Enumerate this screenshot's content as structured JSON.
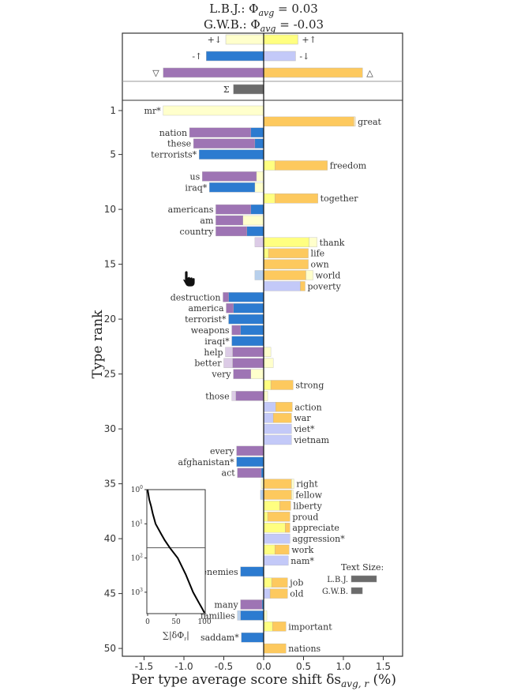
{
  "chart_data": {
    "type": "bar",
    "title_lines": [
      {
        "prefix": "L.B.J.: Φ",
        "sub": "avg",
        "suffix": " = 0.03"
      },
      {
        "prefix": "G.W.B.: Φ",
        "sub": "avg",
        "suffix": " = -0.03"
      }
    ],
    "xlabel": {
      "prefix": "Per type average score shift δs",
      "sub": "avg, r",
      "suffix": " (%)"
    },
    "ylabel": "Type rank",
    "xlim": [
      -1.7,
      1.75
    ],
    "x_ticks": [
      -1.5,
      -1.0,
      -0.5,
      0.0,
      0.5,
      1.0,
      1.5
    ],
    "x_tick_labels": [
      "-1.5",
      "-1.0",
      "-0.5",
      "0.0",
      "0.5",
      "1.0",
      "1.5"
    ],
    "y_ticks": [
      1,
      5,
      10,
      15,
      20,
      25,
      30,
      35,
      40,
      45,
      50
    ],
    "y_tick_labels": [
      "1",
      "5",
      "10",
      "15",
      "20",
      "25",
      "30",
      "35",
      "40",
      "45",
      "50"
    ],
    "colors": {
      "p": "#9e74b4",
      "o": "#fdc95e",
      "b": "#2c7bd0",
      "y": "#ffff80",
      "ly": "#ffffcc",
      "lav": "#c3c9f8",
      "lp": "#dccbe6",
      "lb": "#b8d0ec",
      "lo": "#fde6b0",
      "sum": "#6b6b6b"
    },
    "summary": [
      {
        "label": "+↓",
        "value": -0.475,
        "color": "ly",
        "row": 0
      },
      {
        "label": "+↑",
        "value": 0.43,
        "color": "y",
        "row": 0
      },
      {
        "label": "-↑",
        "value": -0.72,
        "color": "b",
        "row": 1
      },
      {
        "label": "-↓",
        "value": 0.4,
        "color": "lav",
        "row": 1
      },
      {
        "label": "▽",
        "value": -1.26,
        "color": "p",
        "row": 2
      },
      {
        "label": "△",
        "value": 1.24,
        "color": "o",
        "row": 2
      },
      {
        "label": "Σ",
        "value": -0.38,
        "color": "sum",
        "row": 3
      }
    ],
    "words": [
      {
        "rank": 1,
        "word": "mr*",
        "segs": [
          [
            0,
            -1.26,
            "ly"
          ]
        ]
      },
      {
        "rank": 2,
        "word": "great",
        "segs": [
          [
            0,
            1.13,
            "o"
          ],
          [
            1.13,
            1.15,
            "lo"
          ]
        ]
      },
      {
        "rank": 3,
        "word": "nation",
        "segs": [
          [
            0,
            -0.16,
            "b"
          ],
          [
            -0.16,
            -0.93,
            "p"
          ]
        ]
      },
      {
        "rank": 4,
        "word": "these",
        "segs": [
          [
            0,
            -0.11,
            "b"
          ],
          [
            -0.11,
            -0.88,
            "p"
          ]
        ]
      },
      {
        "rank": 5,
        "word": "terrorists*",
        "segs": [
          [
            0,
            -0.81,
            "b"
          ]
        ]
      },
      {
        "rank": 6,
        "word": "freedom",
        "segs": [
          [
            0,
            0.14,
            "y"
          ],
          [
            0.14,
            0.8,
            "o"
          ]
        ]
      },
      {
        "rank": 7,
        "word": "us",
        "segs": [
          [
            0,
            -0.09,
            "ly"
          ],
          [
            -0.09,
            -0.77,
            "p"
          ]
        ]
      },
      {
        "rank": 8,
        "word": "iraq*",
        "segs": [
          [
            0,
            -0.11,
            "ly"
          ],
          [
            -0.11,
            -0.68,
            "b"
          ]
        ]
      },
      {
        "rank": 9,
        "word": "together",
        "segs": [
          [
            0,
            0.14,
            "y"
          ],
          [
            0.14,
            0.68,
            "o"
          ]
        ]
      },
      {
        "rank": 10,
        "word": "americans",
        "segs": [
          [
            0,
            -0.16,
            "b"
          ],
          [
            -0.16,
            -0.6,
            "p"
          ]
        ]
      },
      {
        "rank": 11,
        "word": "am",
        "segs": [
          [
            0,
            -0.26,
            "ly"
          ],
          [
            -0.26,
            -0.6,
            "p"
          ]
        ]
      },
      {
        "rank": 12,
        "word": "country",
        "segs": [
          [
            0,
            -0.21,
            "b"
          ],
          [
            -0.21,
            -0.6,
            "p"
          ]
        ]
      },
      {
        "rank": 13,
        "word": "thank",
        "segs": [
          [
            0,
            -0.11,
            "lp"
          ],
          [
            0,
            0.57,
            "y"
          ],
          [
            0.57,
            0.67,
            "ly"
          ]
        ]
      },
      {
        "rank": 14,
        "word": "life",
        "segs": [
          [
            0,
            0.06,
            "y"
          ],
          [
            0.06,
            0.56,
            "o"
          ]
        ]
      },
      {
        "rank": 15,
        "word": "own",
        "segs": [
          [
            0,
            0.56,
            "o"
          ]
        ]
      },
      {
        "rank": 16,
        "word": "world",
        "segs": [
          [
            0,
            -0.11,
            "lb"
          ],
          [
            0,
            0.53,
            "o"
          ],
          [
            0.53,
            0.62,
            "ly"
          ]
        ]
      },
      {
        "rank": 17,
        "word": "poverty",
        "segs": [
          [
            0,
            0.46,
            "lav"
          ],
          [
            0.46,
            0.52,
            "o"
          ]
        ]
      },
      {
        "rank": 18,
        "word": "destruction",
        "segs": [
          [
            0,
            -0.44,
            "b"
          ],
          [
            -0.44,
            -0.51,
            "p"
          ]
        ]
      },
      {
        "rank": 19,
        "word": "america",
        "segs": [
          [
            0,
            -0.38,
            "b"
          ],
          [
            -0.38,
            -0.47,
            "p"
          ]
        ]
      },
      {
        "rank": 20,
        "word": "terrorist*",
        "segs": [
          [
            0,
            -0.44,
            "b"
          ]
        ]
      },
      {
        "rank": 21,
        "word": "weapons",
        "segs": [
          [
            0,
            -0.29,
            "b"
          ],
          [
            -0.29,
            -0.4,
            "p"
          ]
        ]
      },
      {
        "rank": 22,
        "word": "iraqi*",
        "segs": [
          [
            0,
            -0.4,
            "b"
          ]
        ]
      },
      {
        "rank": 23,
        "word": "help",
        "segs": [
          [
            0,
            -0.39,
            "p"
          ],
          [
            -0.39,
            -0.48,
            "lp"
          ],
          [
            0,
            0.09,
            "ly"
          ]
        ]
      },
      {
        "rank": 24,
        "word": "better",
        "segs": [
          [
            0,
            -0.39,
            "p"
          ],
          [
            -0.39,
            -0.5,
            "lp"
          ],
          [
            0,
            0.12,
            "ly"
          ]
        ]
      },
      {
        "rank": 25,
        "word": "very",
        "segs": [
          [
            0,
            -0.16,
            "ly"
          ],
          [
            -0.16,
            -0.38,
            "p"
          ]
        ]
      },
      {
        "rank": 26,
        "word": "strong",
        "segs": [
          [
            0,
            0.09,
            "y"
          ],
          [
            0.09,
            0.37,
            "o"
          ]
        ]
      },
      {
        "rank": 27,
        "word": "those",
        "segs": [
          [
            0,
            -0.35,
            "p"
          ],
          [
            -0.35,
            -0.4,
            "lp"
          ],
          [
            0,
            0.05,
            "ly"
          ]
        ]
      },
      {
        "rank": 28,
        "word": "action",
        "segs": [
          [
            0,
            0.15,
            "lav"
          ],
          [
            0.15,
            0.36,
            "o"
          ]
        ]
      },
      {
        "rank": 29,
        "word": "war",
        "segs": [
          [
            0,
            0.12,
            "lav"
          ],
          [
            0.12,
            0.35,
            "o"
          ]
        ]
      },
      {
        "rank": 30,
        "word": "viet*",
        "segs": [
          [
            0,
            0.35,
            "lav"
          ]
        ]
      },
      {
        "rank": 31,
        "word": "vietnam",
        "segs": [
          [
            0,
            0.35,
            "lav"
          ]
        ]
      },
      {
        "rank": 32,
        "word": "every",
        "segs": [
          [
            0,
            -0.34,
            "p"
          ]
        ]
      },
      {
        "rank": 33,
        "word": "afghanistan*",
        "segs": [
          [
            0,
            -0.34,
            "b"
          ]
        ]
      },
      {
        "rank": 34,
        "word": "act",
        "segs": [
          [
            0,
            -0.03,
            "b"
          ],
          [
            -0.03,
            -0.33,
            "p"
          ]
        ]
      },
      {
        "rank": 35,
        "word": "right",
        "segs": [
          [
            0,
            -0.03,
            "ly"
          ],
          [
            0,
            0.35,
            "o"
          ],
          [
            0.35,
            0.38,
            "ly"
          ]
        ]
      },
      {
        "rank": 36,
        "word": "fellow",
        "segs": [
          [
            0,
            -0.04,
            "lb"
          ],
          [
            0,
            0.35,
            "o"
          ],
          [
            0.35,
            0.37,
            "ly"
          ]
        ]
      },
      {
        "rank": 37,
        "word": "liberty",
        "segs": [
          [
            0,
            0.2,
            "y"
          ],
          [
            0.2,
            0.34,
            "o"
          ]
        ]
      },
      {
        "rank": 38,
        "word": "proud",
        "segs": [
          [
            0,
            0.05,
            "y"
          ],
          [
            0.05,
            0.33,
            "o"
          ]
        ]
      },
      {
        "rank": 39,
        "word": "appreciate",
        "segs": [
          [
            0,
            0.27,
            "y"
          ],
          [
            0.27,
            0.33,
            "o"
          ]
        ]
      },
      {
        "rank": 40,
        "word": "aggression*",
        "segs": [
          [
            0,
            0.33,
            "lav"
          ]
        ]
      },
      {
        "rank": 41,
        "word": "work",
        "segs": [
          [
            0,
            0.14,
            "y"
          ],
          [
            0.14,
            0.32,
            "o"
          ]
        ]
      },
      {
        "rank": 42,
        "word": "nam*",
        "segs": [
          [
            0,
            0.31,
            "lav"
          ]
        ]
      },
      {
        "rank": 43,
        "word": "enemies",
        "segs": [
          [
            0,
            -0.29,
            "b"
          ]
        ]
      },
      {
        "rank": 44,
        "word": "job",
        "segs": [
          [
            0,
            0.1,
            "y"
          ],
          [
            0.1,
            0.3,
            "o"
          ]
        ]
      },
      {
        "rank": 45,
        "word": "old",
        "segs": [
          [
            0,
            0.08,
            "lav"
          ],
          [
            0.08,
            0.3,
            "o"
          ]
        ]
      },
      {
        "rank": 46,
        "word": "many",
        "segs": [
          [
            0,
            -0.02,
            "b"
          ],
          [
            -0.02,
            -0.29,
            "p"
          ]
        ]
      },
      {
        "rank": 47,
        "word": "families",
        "segs": [
          [
            0,
            -0.29,
            "b"
          ],
          [
            -0.29,
            -0.33,
            "lb"
          ],
          [
            0,
            0.04,
            "ly"
          ]
        ]
      },
      {
        "rank": 48,
        "word": "important",
        "segs": [
          [
            0,
            0.11,
            "y"
          ],
          [
            0.11,
            0.28,
            "o"
          ]
        ]
      },
      {
        "rank": 49,
        "word": "saddam*",
        "segs": [
          [
            0,
            -0.28,
            "b"
          ]
        ]
      },
      {
        "rank": 50,
        "word": "nations",
        "segs": [
          [
            0,
            0.28,
            "o"
          ]
        ]
      }
    ],
    "inset": {
      "type": "line",
      "xlabel": "∑|δΦ",
      "xlabel_sub": "r",
      "xlabel_end": "|",
      "x_ticks": [
        "0",
        "50",
        "100"
      ],
      "y_tick_base": "10",
      "y_tick_exps": [
        "0",
        "1",
        "2",
        "3"
      ],
      "cutoff_rank": 50,
      "points": [
        [
          1,
          0
        ],
        [
          2,
          3
        ],
        [
          3,
          6
        ],
        [
          5,
          9
        ],
        [
          10,
          14
        ],
        [
          20,
          24
        ],
        [
          30,
          30
        ],
        [
          50,
          39
        ],
        [
          100,
          53
        ],
        [
          300,
          67
        ],
        [
          1000,
          80
        ],
        [
          2000,
          90
        ],
        [
          3000,
          96
        ],
        [
          4000,
          100
        ]
      ]
    },
    "text_size": {
      "title": "Text Size:",
      "entries": [
        {
          "label": "L.B.J.",
          "relative": 1.0
        },
        {
          "label": "G.W.B.",
          "relative": 0.44
        }
      ]
    }
  }
}
